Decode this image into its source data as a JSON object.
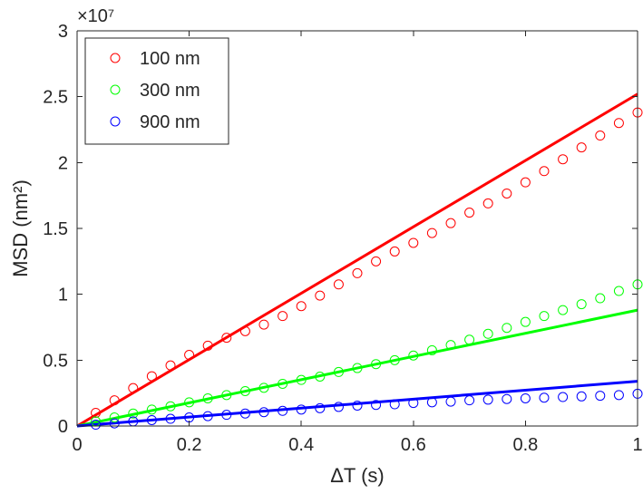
{
  "chart_data": {
    "type": "scatter",
    "xlabel": "ΔT (s)",
    "ylabel": "MSD (nm²)",
    "xlim": [
      0,
      1
    ],
    "ylim": [
      0,
      3
    ],
    "y_multiplier": "×10⁷",
    "x_ticks": [
      "0",
      "0.2",
      "0.4",
      "0.6",
      "0.8",
      "1"
    ],
    "y_ticks": [
      "0",
      "0.5",
      "1",
      "1.5",
      "2",
      "2.5",
      "3"
    ],
    "legend_position": "top-left",
    "grid": false,
    "series": [
      {
        "name": "100 nm",
        "color": "#ff0000",
        "marker": "circle",
        "x": [
          0.0333,
          0.0667,
          0.1,
          0.1333,
          0.1667,
          0.2,
          0.2333,
          0.2667,
          0.3,
          0.3333,
          0.3667,
          0.4,
          0.4333,
          0.4667,
          0.5,
          0.5333,
          0.5667,
          0.6,
          0.6333,
          0.6667,
          0.7,
          0.7333,
          0.7667,
          0.8,
          0.8333,
          0.8667,
          0.9,
          0.9333,
          0.9667,
          1.0
        ],
        "y": [
          0.1,
          0.195,
          0.288,
          0.378,
          0.46,
          0.54,
          0.61,
          0.67,
          0.72,
          0.77,
          0.835,
          0.91,
          0.99,
          1.075,
          1.16,
          1.25,
          1.325,
          1.39,
          1.465,
          1.54,
          1.62,
          1.69,
          1.765,
          1.85,
          1.935,
          2.025,
          2.115,
          2.205,
          2.3,
          2.38
        ],
        "fit_line": {
          "x": [
            0,
            1
          ],
          "y": [
            0,
            2.52
          ]
        }
      },
      {
        "name": "300 nm",
        "color": "#00ff00",
        "marker": "circle",
        "x": [
          0.0333,
          0.0667,
          0.1,
          0.1333,
          0.1667,
          0.2,
          0.2333,
          0.2667,
          0.3,
          0.3333,
          0.3667,
          0.4,
          0.4333,
          0.4667,
          0.5,
          0.5333,
          0.5667,
          0.6,
          0.6333,
          0.6667,
          0.7,
          0.7333,
          0.7667,
          0.8,
          0.8333,
          0.8667,
          0.9,
          0.9333,
          0.9667,
          1.0
        ],
        "y": [
          0.035,
          0.065,
          0.095,
          0.125,
          0.15,
          0.18,
          0.21,
          0.235,
          0.265,
          0.29,
          0.32,
          0.35,
          0.375,
          0.41,
          0.44,
          0.47,
          0.5,
          0.535,
          0.575,
          0.615,
          0.655,
          0.7,
          0.745,
          0.79,
          0.835,
          0.88,
          0.925,
          0.97,
          1.025,
          1.075
        ],
        "fit_line": {
          "x": [
            0,
            1
          ],
          "y": [
            0,
            0.88
          ]
        }
      },
      {
        "name": "900 nm",
        "color": "#0000ff",
        "marker": "circle",
        "x": [
          0.0333,
          0.0667,
          0.1,
          0.1333,
          0.1667,
          0.2,
          0.2333,
          0.2667,
          0.3,
          0.3333,
          0.3667,
          0.4,
          0.4333,
          0.4667,
          0.5,
          0.5333,
          0.5667,
          0.6,
          0.6333,
          0.6667,
          0.7,
          0.7333,
          0.7667,
          0.8,
          0.8333,
          0.8667,
          0.9,
          0.9333,
          0.9667,
          1.0
        ],
        "y": [
          0.01,
          0.02,
          0.035,
          0.045,
          0.055,
          0.065,
          0.075,
          0.085,
          0.095,
          0.105,
          0.115,
          0.125,
          0.135,
          0.145,
          0.155,
          0.16,
          0.165,
          0.175,
          0.18,
          0.185,
          0.195,
          0.2,
          0.205,
          0.21,
          0.215,
          0.22,
          0.225,
          0.23,
          0.235,
          0.245
        ],
        "fit_line": {
          "x": [
            0,
            1
          ],
          "y": [
            0,
            0.34
          ]
        }
      }
    ]
  }
}
